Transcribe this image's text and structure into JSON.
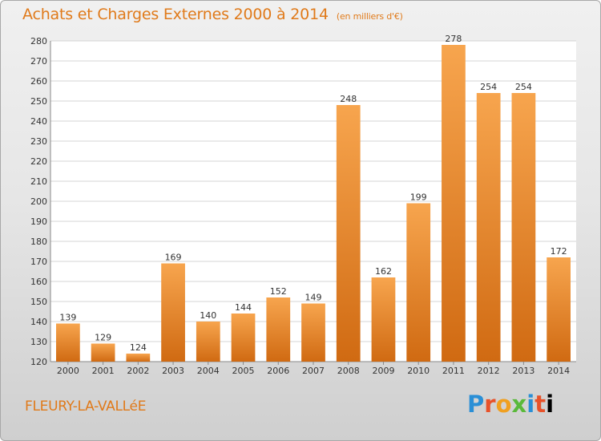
{
  "header": {
    "title": "Achats et Charges Externes 2000 à 2014",
    "unit": "(en milliers d'€)"
  },
  "footer": {
    "town": "FLEURY-LA-VALLéE",
    "brand_letters": [
      "P",
      "r",
      "o",
      "x",
      "i",
      "t",
      "i"
    ]
  },
  "colors": {
    "bar_light": "#f7a54e",
    "bar_dark": "#d06a12",
    "text_accent": "#e07a1a"
  },
  "chart_data": {
    "type": "bar",
    "title": "Achats et Charges Externes 2000 à 2014",
    "subtitle": "(en milliers d'€)",
    "xlabel": "",
    "ylabel": "",
    "categories": [
      "2000",
      "2001",
      "2002",
      "2003",
      "2004",
      "2005",
      "2006",
      "2007",
      "2008",
      "2009",
      "2010",
      "2011",
      "2012",
      "2013",
      "2014"
    ],
    "values": [
      139,
      129,
      124,
      169,
      140,
      144,
      152,
      149,
      248,
      162,
      199,
      278,
      254,
      254,
      172
    ],
    "ylim": [
      120,
      280
    ],
    "yticks": [
      120,
      130,
      140,
      150,
      160,
      170,
      180,
      190,
      200,
      210,
      220,
      230,
      240,
      250,
      260,
      270,
      280
    ],
    "grid": true,
    "legend": "none"
  }
}
